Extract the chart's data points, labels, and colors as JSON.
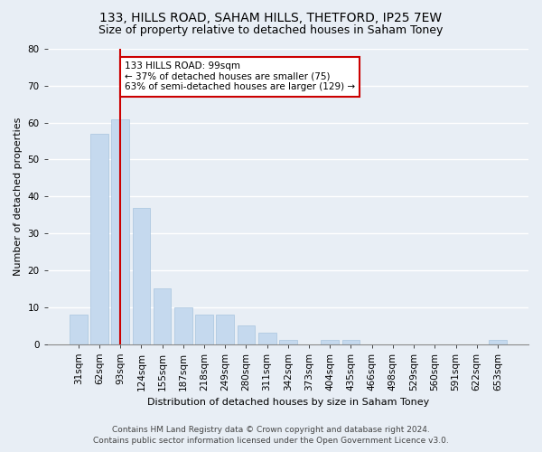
{
  "title1": "133, HILLS ROAD, SAHAM HILLS, THETFORD, IP25 7EW",
  "title2": "Size of property relative to detached houses in Saham Toney",
  "xlabel": "Distribution of detached houses by size in Saham Toney",
  "ylabel": "Number of detached properties",
  "bar_color": "#c5d9ee",
  "bar_edge_color": "#a8c4de",
  "categories": [
    "31sqm",
    "62sqm",
    "93sqm",
    "124sqm",
    "155sqm",
    "187sqm",
    "218sqm",
    "249sqm",
    "280sqm",
    "311sqm",
    "342sqm",
    "373sqm",
    "404sqm",
    "435sqm",
    "466sqm",
    "498sqm",
    "529sqm",
    "560sqm",
    "591sqm",
    "622sqm",
    "653sqm"
  ],
  "values": [
    8,
    57,
    61,
    37,
    15,
    10,
    8,
    8,
    5,
    3,
    1,
    0,
    1,
    1,
    0,
    0,
    0,
    0,
    0,
    0,
    1
  ],
  "ylim": [
    0,
    80
  ],
  "yticks": [
    0,
    10,
    20,
    30,
    40,
    50,
    60,
    70,
    80
  ],
  "vline_x_index": 2,
  "vline_color": "#cc0000",
  "annotation_line1": "133 HILLS ROAD: 99sqm",
  "annotation_line2": "← 37% of detached houses are smaller (75)",
  "annotation_line3": "63% of semi-detached houses are larger (129) →",
  "annotation_box_color": "#cc0000",
  "annotation_box_fill": "#ffffff",
  "footer1": "Contains HM Land Registry data © Crown copyright and database right 2024.",
  "footer2": "Contains public sector information licensed under the Open Government Licence v3.0.",
  "background_color": "#e8eef5",
  "plot_bg_color": "#e8eef5",
  "grid_color": "#ffffff",
  "title_fontsize": 10,
  "subtitle_fontsize": 9,
  "axis_label_fontsize": 8,
  "tick_fontsize": 7.5,
  "footer_fontsize": 6.5
}
